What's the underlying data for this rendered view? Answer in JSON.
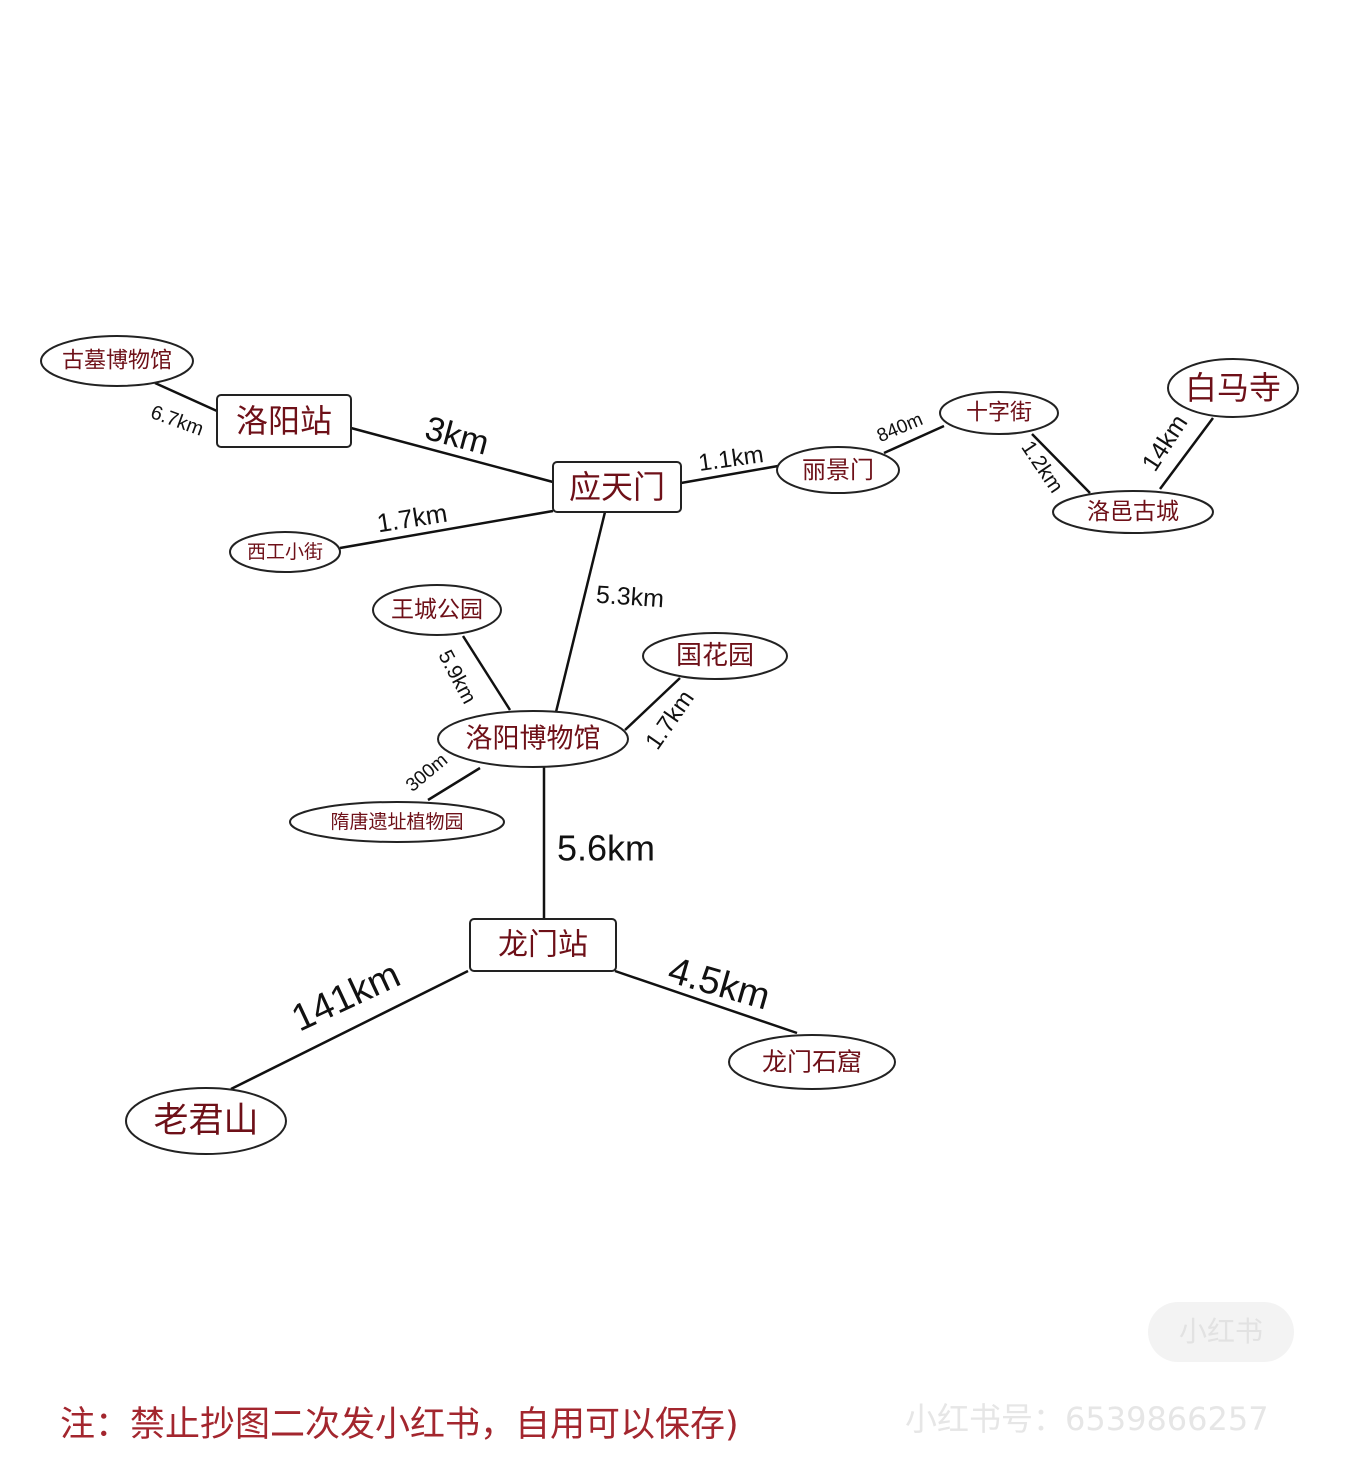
{
  "diagram": {
    "nodes": [
      {
        "id": "guMu",
        "label": "古墓博物馆"
      },
      {
        "id": "luoyangZhan",
        "label": "洛阳站"
      },
      {
        "id": "yingTianMen",
        "label": "应天门"
      },
      {
        "id": "xiGong",
        "label": "西工小街"
      },
      {
        "id": "liJingMen",
        "label": "丽景门"
      },
      {
        "id": "shiZiJie",
        "label": "十字街"
      },
      {
        "id": "baiMaSi",
        "label": "白马寺"
      },
      {
        "id": "luoYi",
        "label": "洛邑古城"
      },
      {
        "id": "wangCheng",
        "label": "王城公园"
      },
      {
        "id": "guoHua",
        "label": "国花园"
      },
      {
        "id": "museum",
        "label": "洛阳博物馆"
      },
      {
        "id": "suiTang",
        "label": "隋唐遗址植物园"
      },
      {
        "id": "longMenZhan",
        "label": "龙门站"
      },
      {
        "id": "laoJun",
        "label": "老君山"
      },
      {
        "id": "longMenShiKu",
        "label": "龙门石窟"
      }
    ],
    "edges": [
      {
        "from": "guMu",
        "to": "luoyangZhan",
        "label": "6.7km"
      },
      {
        "from": "luoyangZhan",
        "to": "yingTianMen",
        "label": "3km"
      },
      {
        "from": "xiGong",
        "to": "yingTianMen",
        "label": "1.7km"
      },
      {
        "from": "yingTianMen",
        "to": "liJingMen",
        "label": "1.1km"
      },
      {
        "from": "liJingMen",
        "to": "shiZiJie",
        "label": "840m"
      },
      {
        "from": "shiZiJie",
        "to": "luoYi",
        "label": "1.2km"
      },
      {
        "from": "luoYi",
        "to": "baiMaSi",
        "label": "14km"
      },
      {
        "from": "yingTianMen",
        "to": "museum",
        "label": "5.3km"
      },
      {
        "from": "wangCheng",
        "to": "museum",
        "label": "5.9km"
      },
      {
        "from": "museum",
        "to": "guoHua",
        "label": "1.7km"
      },
      {
        "from": "museum",
        "to": "suiTang",
        "label": "300m"
      },
      {
        "from": "museum",
        "to": "longMenZhan",
        "label": "5.6km"
      },
      {
        "from": "longMenZhan",
        "to": "laoJun",
        "label": "141km"
      },
      {
        "from": "longMenZhan",
        "to": "longMenShiKu",
        "label": "4.5km"
      }
    ]
  },
  "footer": {
    "note": "注：禁止抄图二次发小红书，自用可以保存)",
    "watermark_id": "小红书号：6539866257",
    "watermark_logo": "小红书"
  },
  "colors": {
    "node_text": "#6e1018",
    "note_text": "#a3262e",
    "line": "#111111"
  }
}
